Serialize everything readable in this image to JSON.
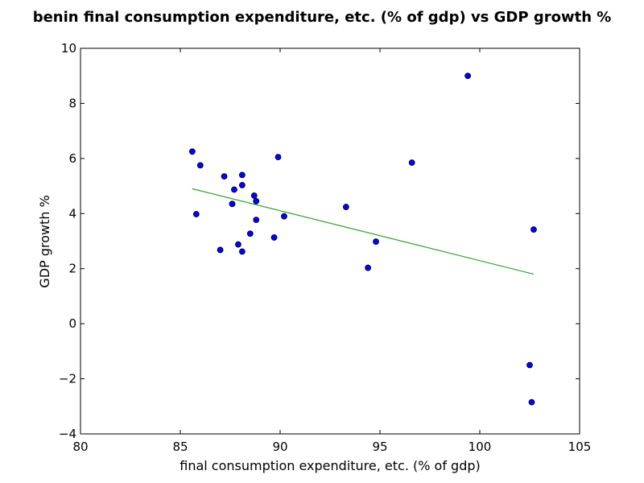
{
  "chart_data": {
    "type": "scatter",
    "title": "benin final consumption expenditure, etc. (% of gdp) vs GDP growth %",
    "xlabel": "final consumption expenditure, etc. (% of gdp)",
    "ylabel": "GDP growth %",
    "xlim": [
      80,
      105
    ],
    "ylim": [
      -4,
      10
    ],
    "xticks": [
      80,
      85,
      90,
      95,
      100,
      105
    ],
    "yticks": [
      -4,
      -2,
      0,
      2,
      4,
      6,
      8,
      10
    ],
    "grid": false,
    "legend": "none",
    "point_color": "#0000ff",
    "line_color": "#2ca02c",
    "points": [
      [
        85.6,
        6.25
      ],
      [
        86.0,
        5.75
      ],
      [
        85.8,
        3.98
      ],
      [
        87.2,
        5.35
      ],
      [
        87.0,
        2.68
      ],
      [
        87.7,
        4.87
      ],
      [
        87.6,
        4.35
      ],
      [
        87.9,
        2.88
      ],
      [
        88.1,
        5.03
      ],
      [
        88.1,
        5.4
      ],
      [
        88.1,
        2.62
      ],
      [
        88.5,
        3.27
      ],
      [
        88.7,
        4.65
      ],
      [
        88.8,
        4.45
      ],
      [
        88.8,
        3.77
      ],
      [
        89.7,
        3.13
      ],
      [
        89.9,
        6.05
      ],
      [
        90.2,
        3.9
      ],
      [
        93.3,
        4.24
      ],
      [
        94.4,
        2.03
      ],
      [
        94.8,
        2.98
      ],
      [
        96.6,
        5.85
      ],
      [
        99.4,
        9.0
      ],
      [
        102.5,
        -1.5
      ],
      [
        102.6,
        -2.85
      ],
      [
        102.7,
        3.42
      ]
    ],
    "trend_line": {
      "x": [
        85.6,
        102.7
      ],
      "y": [
        4.9,
        1.8
      ]
    }
  }
}
